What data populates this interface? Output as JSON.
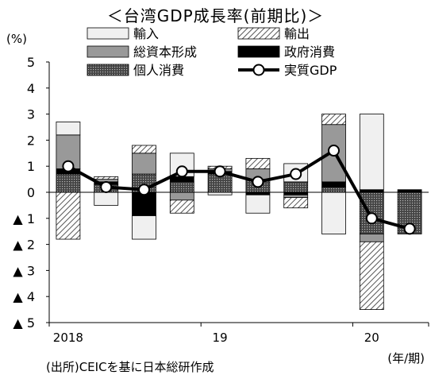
{
  "chart_data": {
    "type": "bar",
    "title": "＜台湾GDP成長率(前期比)＞",
    "unit_label": "(%)",
    "source": "(出所)CEICを基に日本総研作成",
    "x_axis_note": "(年/期)",
    "year_labels": [
      {
        "label": "2018",
        "at": 0
      },
      {
        "label": "19",
        "at": 4
      },
      {
        "label": "20",
        "at": 8
      }
    ],
    "ylim": [
      -5,
      5
    ],
    "y_ticks": [
      {
        "v": 5,
        "label": "5"
      },
      {
        "v": 4,
        "label": "4"
      },
      {
        "v": 3,
        "label": "3"
      },
      {
        "v": 2,
        "label": "2"
      },
      {
        "v": 1,
        "label": "1"
      },
      {
        "v": 0,
        "label": "0"
      },
      {
        "v": -1,
        "label": "▲ 1"
      },
      {
        "v": -2,
        "label": "▲ 2"
      },
      {
        "v": -3,
        "label": "▲ 3"
      },
      {
        "v": -4,
        "label": "▲ 4"
      },
      {
        "v": -5,
        "label": "▲ 5"
      }
    ],
    "categories": [
      "2018Q1",
      "2018Q2",
      "2018Q3",
      "2018Q4",
      "2019Q1",
      "2019Q2",
      "2019Q3",
      "2019Q4",
      "2020Q1",
      "2020Q2"
    ],
    "series": [
      {
        "name": "個人消費",
        "key": "consumption",
        "pattern": "dots",
        "values": [
          0.7,
          0.3,
          0.7,
          0.4,
          0.7,
          0.5,
          0.4,
          0.2,
          -1.6,
          -1.6
        ]
      },
      {
        "name": "政府消費",
        "key": "government",
        "pattern": "black",
        "values": [
          0.2,
          0.1,
          -0.9,
          0.2,
          0.1,
          -0.1,
          -0.1,
          0.2,
          0.1,
          0.1
        ]
      },
      {
        "name": "総資本形成",
        "key": "capital",
        "pattern": "gray",
        "values": [
          1.3,
          0.1,
          0.8,
          -0.3,
          0.1,
          0.4,
          -0.1,
          2.2,
          -0.3,
          0.0
        ]
      },
      {
        "name": "輸出",
        "key": "exports",
        "pattern": "hatch",
        "values": [
          -1.8,
          0.1,
          0.3,
          -0.5,
          0.1,
          0.4,
          -0.4,
          0.4,
          -2.6,
          0.0
        ]
      },
      {
        "name": "輸入",
        "key": "imports",
        "pattern": "light",
        "values": [
          0.5,
          -0.5,
          -0.9,
          0.9,
          -0.1,
          -0.7,
          0.7,
          -1.6,
          2.9,
          0.0
        ]
      },
      {
        "name": "実質GDP",
        "key": "gdp",
        "pattern": "line",
        "values": [
          1.0,
          0.2,
          0.1,
          0.8,
          0.8,
          0.4,
          0.7,
          1.6,
          -1.0,
          -1.4
        ]
      }
    ],
    "legend": [
      {
        "name": "輸入",
        "pattern": "light"
      },
      {
        "name": "輸出",
        "pattern": "hatch"
      },
      {
        "name": "総資本形成",
        "pattern": "gray"
      },
      {
        "name": "政府消費",
        "pattern": "black"
      },
      {
        "name": "個人消費",
        "pattern": "dots"
      },
      {
        "name": "実質GDP",
        "pattern": "line"
      }
    ],
    "legend_placement": "top",
    "grid": false,
    "colors": {
      "light": "#f0f0f0",
      "gray": "#999999",
      "black": "#000000",
      "hatch_bg": "#ffffff",
      "hatch_line": "#555555",
      "dots_bg": "#444444",
      "dots_fg": "#bbbbbb",
      "line": "#000000",
      "marker_fill": "#ffffff"
    }
  }
}
